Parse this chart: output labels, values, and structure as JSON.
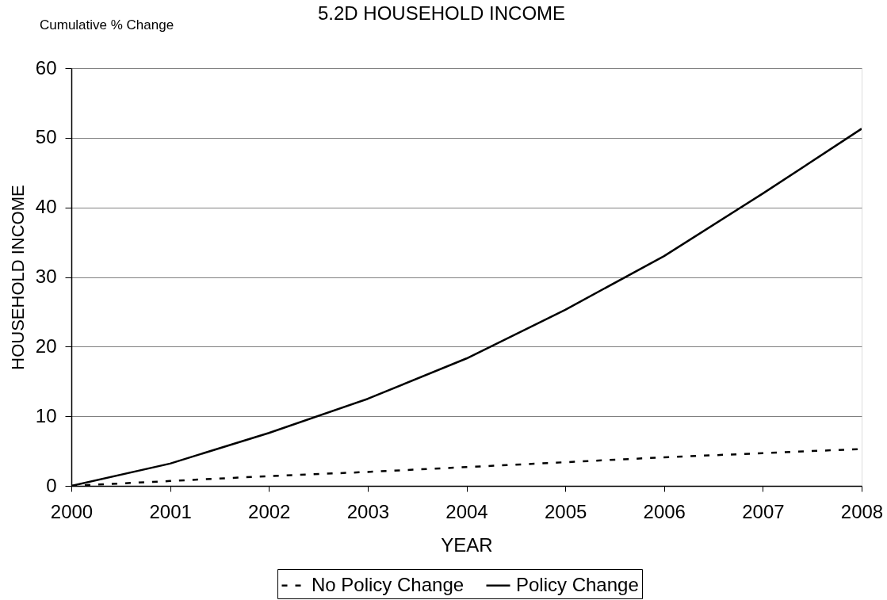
{
  "chart_data": {
    "type": "line",
    "title": "5.2D  HOUSEHOLD INCOME",
    "annotations": [
      "Cumulative % Change"
    ],
    "xlabel": "YEAR",
    "ylabel": "HOUSEHOLD INCOME",
    "x": [
      2000,
      2001,
      2002,
      2003,
      2004,
      2005,
      2006,
      2007,
      2008
    ],
    "series": [
      {
        "name": "No Policy Change",
        "color": "#000000",
        "line_style": "dashed",
        "values": [
          0,
          0.7,
          1.4,
          2.0,
          2.7,
          3.4,
          4.1,
          4.7,
          5.3
        ]
      },
      {
        "name": "Policy Change",
        "color": "#000000",
        "line_style": "solid",
        "values": [
          0,
          3.2,
          7.6,
          12.5,
          18.3,
          25.3,
          33.0,
          42.0,
          51.3
        ]
      }
    ],
    "xlim": [
      2000,
      2008
    ],
    "xticks": [
      2000,
      2001,
      2002,
      2003,
      2004,
      2005,
      2006,
      2007,
      2008
    ],
    "ylim": [
      0,
      60
    ],
    "yticks": [
      0,
      10,
      20,
      30,
      40,
      50,
      60
    ],
    "grid": "y",
    "legend": "bottom",
    "marker": "none"
  }
}
